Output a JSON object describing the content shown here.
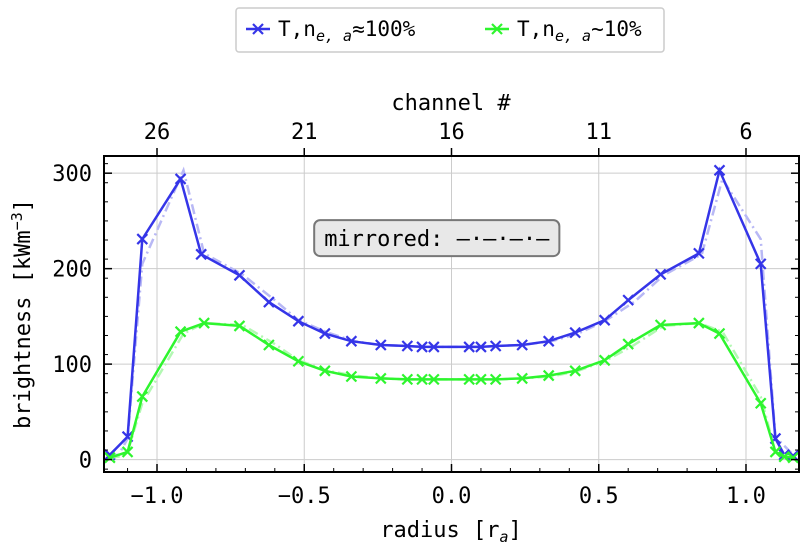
{
  "chart_data": {
    "type": "line",
    "x_axis": {
      "label": "radius [r",
      "label_sub": "a",
      "label_end": "]",
      "xlim": [
        -1.18,
        1.18
      ],
      "ticks": [
        -1.0,
        -0.5,
        0.0,
        0.5,
        1.0
      ],
      "tick_labels": [
        "−1.0",
        "−0.5",
        "0.0",
        "0.5",
        "1.0"
      ]
    },
    "y_axis": {
      "label": "brightness [kWm",
      "label_sup": "−3",
      "label_end": "]",
      "ylim": [
        -13,
        318
      ],
      "ticks": [
        0,
        100,
        200,
        300
      ],
      "tick_labels": [
        "0",
        "100",
        "200",
        "300"
      ]
    },
    "top_axis": {
      "label": "channel #",
      "ticks": [
        -1.0,
        -0.5,
        0.0,
        0.5,
        1.0
      ],
      "tick_labels": [
        "26",
        "21",
        "16",
        "11",
        "6"
      ]
    },
    "grid": true,
    "legend_position": "above plot, outside",
    "annotation": {
      "text": "mirrored: —·—·—·—",
      "x": -0.05,
      "y": 232
    },
    "series": [
      {
        "name_main": "T,n",
        "name_sub": "e, a",
        "name_tail": "≈100%",
        "color": "#3535e8",
        "mirror_color": "#b8b8f5",
        "x": [
          -1.16,
          -1.1,
          -1.05,
          -0.92,
          -0.85,
          -0.72,
          -0.62,
          -0.52,
          -0.43,
          -0.34,
          -0.24,
          -0.15,
          -0.1,
          -0.06,
          0.06,
          0.1,
          0.15,
          0.24,
          0.33,
          0.42,
          0.52,
          0.6,
          0.71,
          0.84,
          0.91,
          1.05,
          1.1,
          1.13,
          1.16
        ],
        "values": [
          5,
          24,
          231,
          294,
          215,
          193,
          165,
          145,
          132,
          124,
          120,
          119,
          118,
          118,
          118,
          118,
          119,
          120,
          124,
          133,
          146,
          167,
          194,
          216,
          303,
          205,
          22,
          5,
          4
        ],
        "mirror_x": [
          -1.16,
          -1.13,
          -1.1,
          -1.05,
          -0.91,
          -0.84,
          -0.71,
          -0.6,
          -0.52,
          -0.42,
          -0.33,
          -0.24,
          -0.15,
          -0.1,
          -0.06,
          0.06,
          0.1,
          0.15,
          0.24,
          0.34,
          0.43,
          0.52,
          0.62,
          0.72,
          0.85,
          0.92,
          1.05,
          1.1,
          1.16
        ],
        "mirror_values": [
          4,
          5,
          22,
          205,
          303,
          216,
          194,
          167,
          146,
          133,
          124,
          120,
          119,
          118,
          118,
          118,
          118,
          119,
          120,
          124,
          132,
          145,
          165,
          193,
          215,
          294,
          231,
          24,
          5
        ]
      },
      {
        "name_main": "T,n",
        "name_sub": "e, a",
        "name_tail": "~10%",
        "color": "#2ef52e",
        "mirror_color": "#b3f8b3",
        "x": [
          -1.16,
          -1.1,
          -1.05,
          -0.92,
          -0.84,
          -0.72,
          -0.62,
          -0.52,
          -0.43,
          -0.34,
          -0.24,
          -0.15,
          -0.1,
          -0.06,
          0.06,
          0.1,
          0.15,
          0.24,
          0.33,
          0.42,
          0.52,
          0.6,
          0.71,
          0.84,
          0.91,
          1.05,
          1.1,
          1.13,
          1.16
        ],
        "values": [
          2,
          8,
          66,
          134,
          143,
          140,
          120,
          103,
          93,
          87,
          85,
          84,
          84,
          84,
          84,
          84,
          84,
          85,
          88,
          93,
          104,
          121,
          141,
          143,
          132,
          59,
          8,
          3,
          2
        ],
        "mirror_x": [
          -1.16,
          -1.13,
          -1.1,
          -1.05,
          -0.91,
          -0.84,
          -0.71,
          -0.6,
          -0.52,
          -0.42,
          -0.33,
          -0.24,
          -0.15,
          -0.1,
          -0.06,
          0.06,
          0.1,
          0.15,
          0.24,
          0.34,
          0.43,
          0.52,
          0.62,
          0.72,
          0.84,
          0.92,
          1.05,
          1.1,
          1.16
        ],
        "mirror_values": [
          2,
          3,
          8,
          59,
          132,
          143,
          141,
          121,
          104,
          93,
          88,
          85,
          84,
          84,
          84,
          84,
          84,
          84,
          85,
          87,
          93,
          103,
          120,
          140,
          143,
          134,
          66,
          8,
          2
        ]
      }
    ]
  }
}
